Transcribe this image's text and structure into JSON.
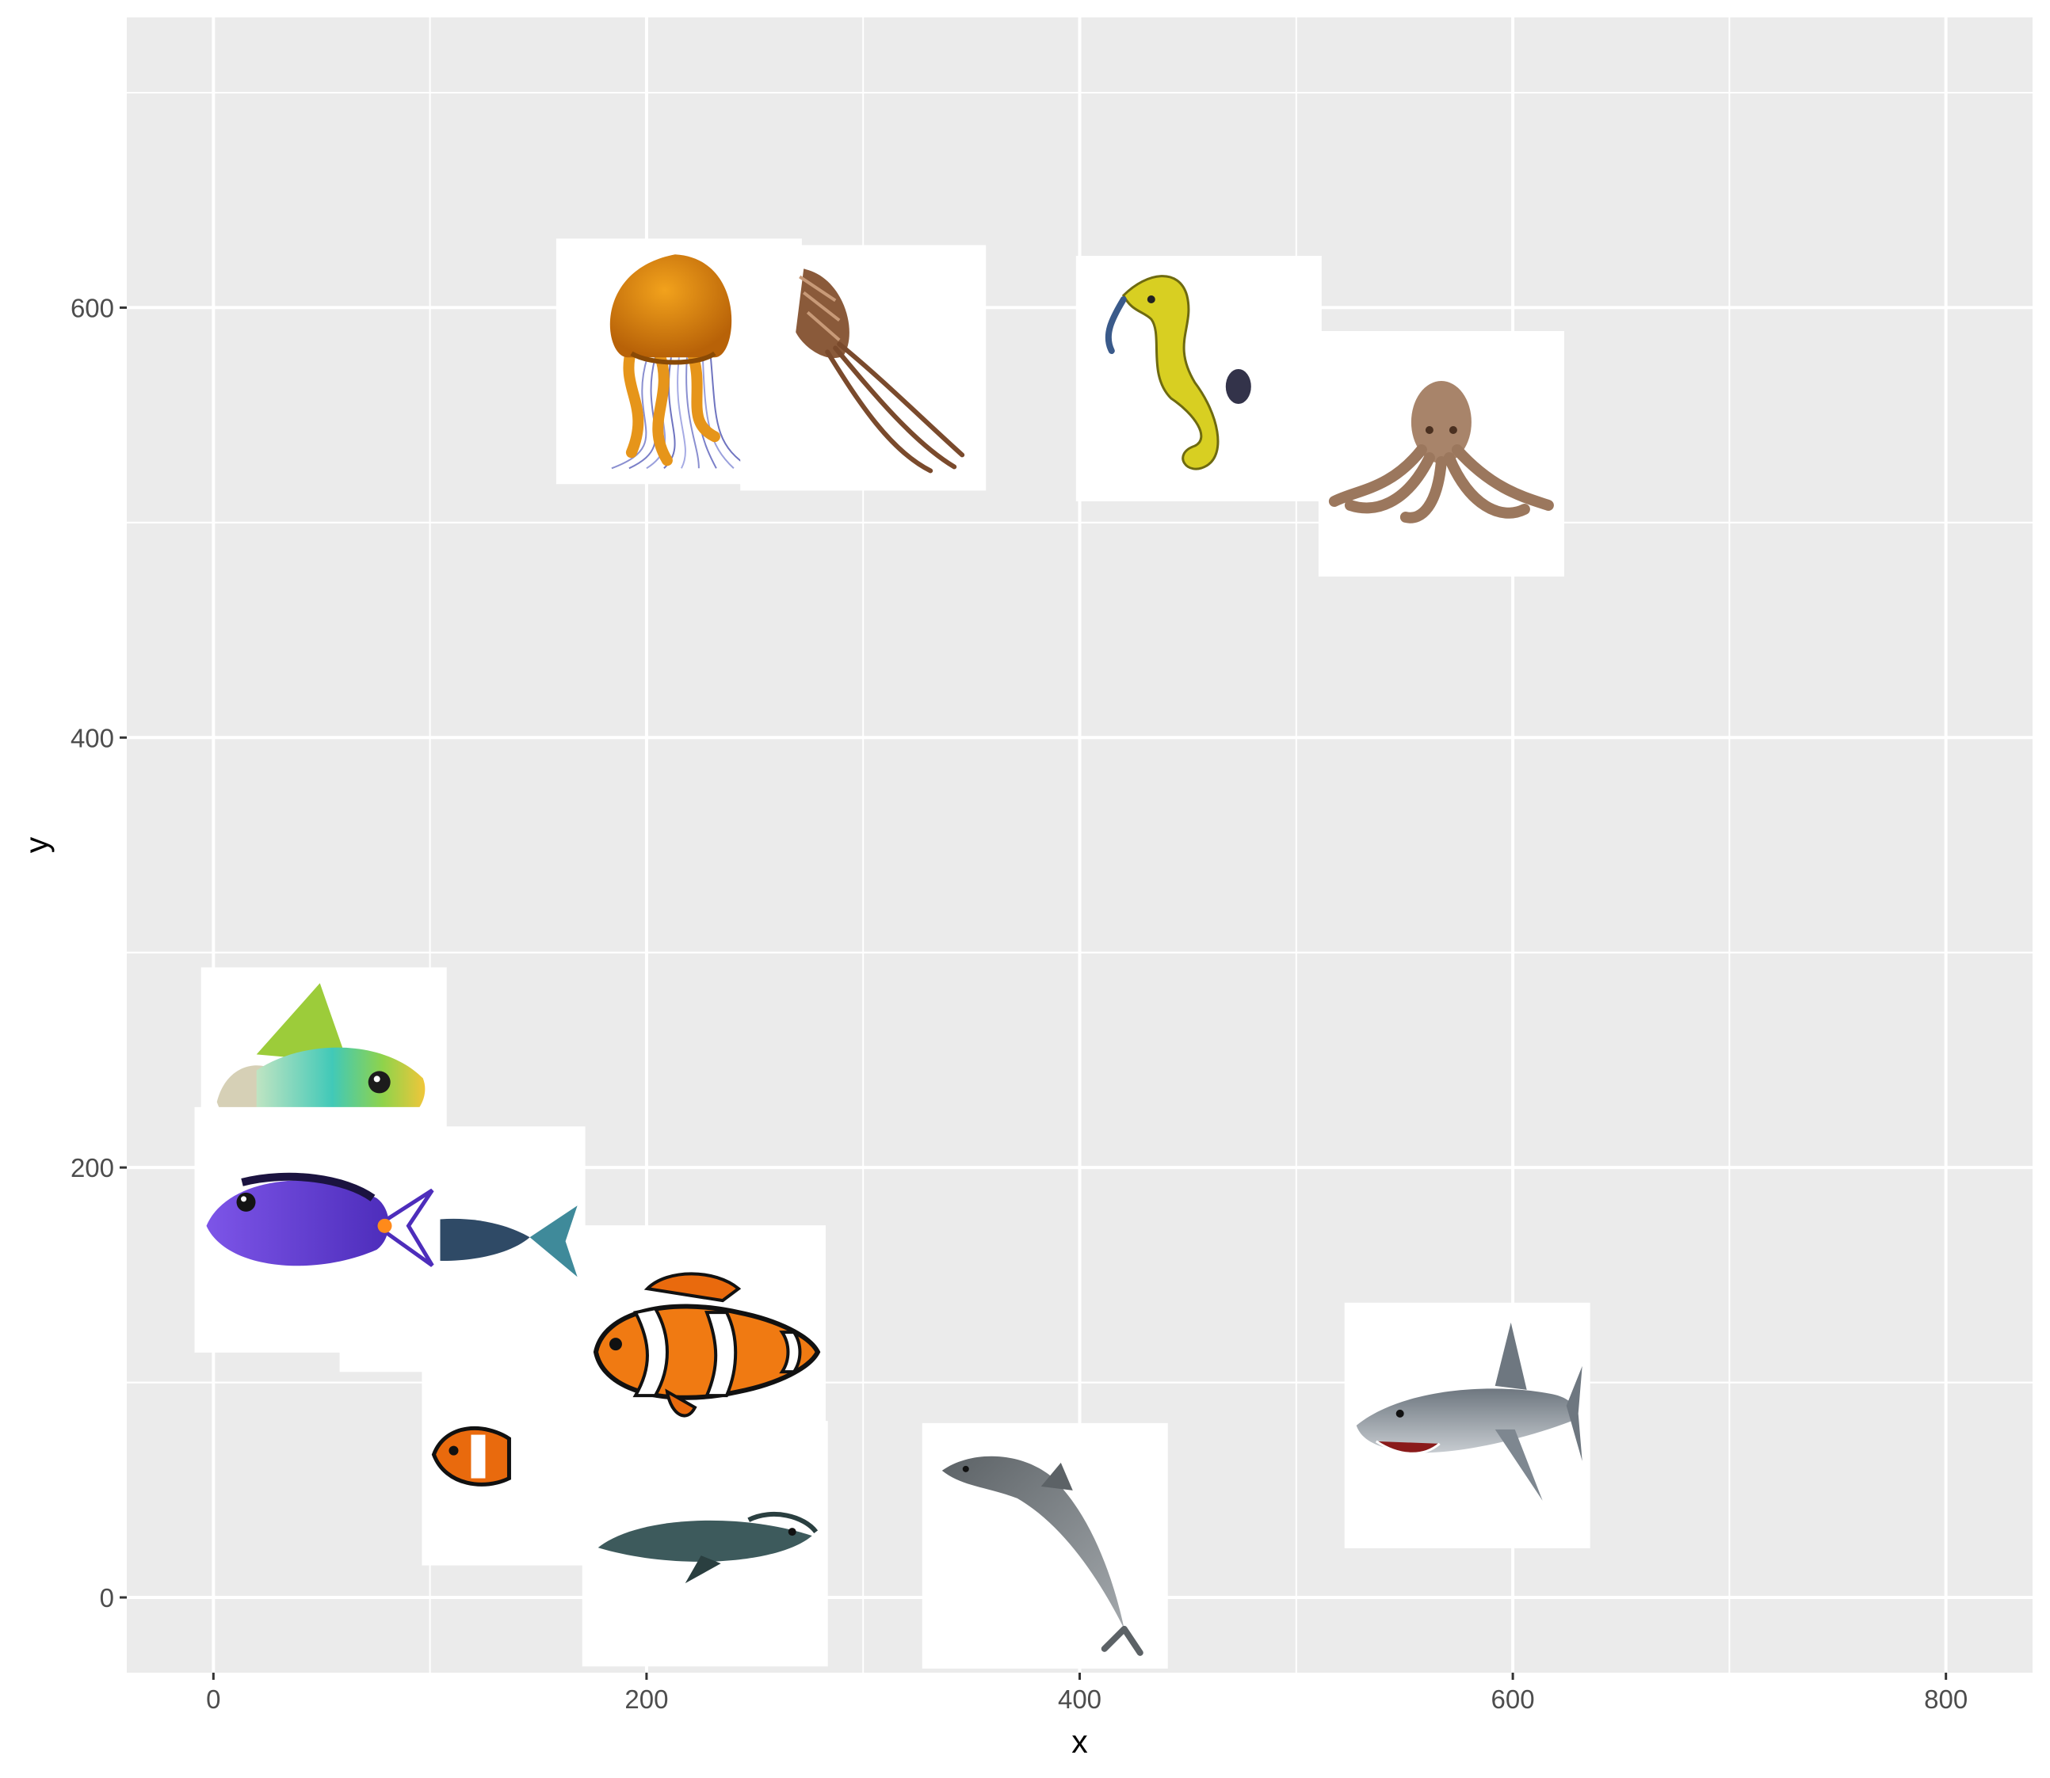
{
  "chart_data": {
    "type": "scatter",
    "title": "",
    "xlabel": "x",
    "ylabel": "y",
    "xlim": [
      -40,
      840
    ],
    "ylim": [
      -35,
      735
    ],
    "x_ticks": [
      0,
      200,
      400,
      600,
      800
    ],
    "y_ticks": [
      0,
      200,
      400,
      600
    ],
    "grid": true,
    "legend": "none",
    "point_marker": "image",
    "points": [
      {
        "label": "jellyfish-icon",
        "x": 215,
        "y": 575
      },
      {
        "label": "squid-icon",
        "x": 300,
        "y": 572
      },
      {
        "label": "seahorse-icon",
        "x": 455,
        "y": 567
      },
      {
        "label": "octopus-icon",
        "x": 567,
        "y": 532
      },
      {
        "label": "tropical-fish-icon",
        "x": 51,
        "y": 236
      },
      {
        "label": "tuna-icon",
        "x": 115,
        "y": 162
      },
      {
        "label": "blue-tang-fish-icon",
        "x": 48,
        "y": 171
      },
      {
        "label": "small-clownfish-icon",
        "x": 153,
        "y": 72
      },
      {
        "label": "catfish-icon",
        "x": 227,
        "y": 25
      },
      {
        "label": "clownfish-icon",
        "x": 226,
        "y": 116
      },
      {
        "label": "dolphin-icon",
        "x": 384,
        "y": 24
      },
      {
        "label": "shark-icon",
        "x": 579,
        "y": 80
      }
    ]
  },
  "colors": {
    "panel_background": "#ebebeb",
    "grid_major": "#ffffff",
    "tick_text": "#4d4d4d",
    "axis_title": "#000000",
    "image_background": "#ffffff"
  }
}
